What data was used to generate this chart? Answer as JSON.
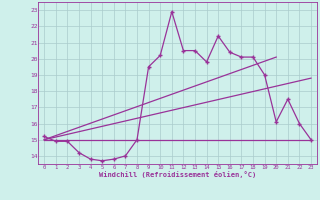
{
  "background_color": "#cff0eb",
  "grid_color": "#aacccc",
  "line_color": "#993399",
  "spine_color": "#993399",
  "curve1_x": [
    0,
    1,
    2,
    3,
    4,
    5,
    6,
    7,
    8,
    9,
    10,
    11,
    12,
    13,
    14,
    15,
    16,
    17,
    18,
    19,
    20,
    21,
    22,
    23
  ],
  "curve1_y": [
    15.2,
    14.9,
    14.9,
    14.2,
    13.8,
    13.7,
    13.8,
    14.0,
    15.0,
    19.5,
    20.2,
    22.9,
    20.5,
    20.5,
    19.8,
    21.4,
    20.4,
    20.1,
    20.1,
    19.0,
    16.1,
    17.5,
    16.0,
    15.0
  ],
  "trend1_x": [
    0,
    23
  ],
  "trend1_y": [
    15.0,
    15.0
  ],
  "trend2_x": [
    0,
    23
  ],
  "trend2_y": [
    15.0,
    18.8
  ],
  "trend3_x": [
    0,
    20
  ],
  "trend3_y": [
    15.0,
    20.1
  ],
  "ylabel_vals": [
    14,
    15,
    16,
    17,
    18,
    19,
    20,
    21,
    22,
    23
  ],
  "xlabel_vals": [
    0,
    1,
    2,
    3,
    4,
    5,
    6,
    7,
    8,
    9,
    10,
    11,
    12,
    13,
    14,
    15,
    16,
    17,
    18,
    19,
    20,
    21,
    22,
    23
  ],
  "xlabel": "Windchill (Refroidissement éolien,°C)",
  "ylim": [
    13.5,
    23.5
  ],
  "xlim": [
    -0.5,
    23.5
  ]
}
